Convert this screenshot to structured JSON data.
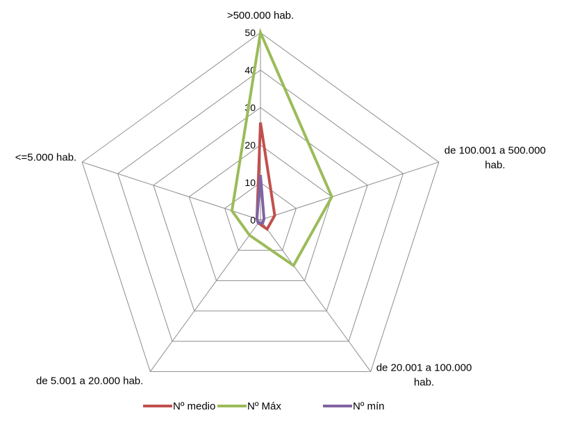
{
  "chart_data": {
    "type": "radar",
    "categories": [
      ">500.000 hab.",
      "de 100.001 a 500.000 hab.",
      "de 20.001 a 100.000 hab.",
      "de 5.001 a 20.000 hab.",
      "<=5.000 hab."
    ],
    "category_label_lines": [
      [
        ">500.000 hab."
      ],
      [
        "de 100.001 a 500.000",
        "hab."
      ],
      [
        "de 20.001 a 100.000",
        "hab."
      ],
      [
        "de 5.001 a 20.000 hab."
      ],
      [
        "<=5.000 hab."
      ]
    ],
    "series": [
      {
        "name": "Nº medio",
        "color": "#c0504d",
        "values": [
          26,
          4,
          3,
          1,
          1
        ]
      },
      {
        "name": "Nº Máx",
        "color": "#9bbb59",
        "values": [
          50,
          20,
          15,
          5,
          8
        ]
      },
      {
        "name": "Nº mín",
        "color": "#8064a2",
        "values": [
          12,
          1,
          1,
          1,
          1
        ]
      }
    ],
    "r_ticks": [
      "0",
      "10",
      "20",
      "30",
      "40",
      "50"
    ],
    "r_range": [
      0,
      50
    ],
    "gridlines": true,
    "legend_position": "bottom"
  }
}
